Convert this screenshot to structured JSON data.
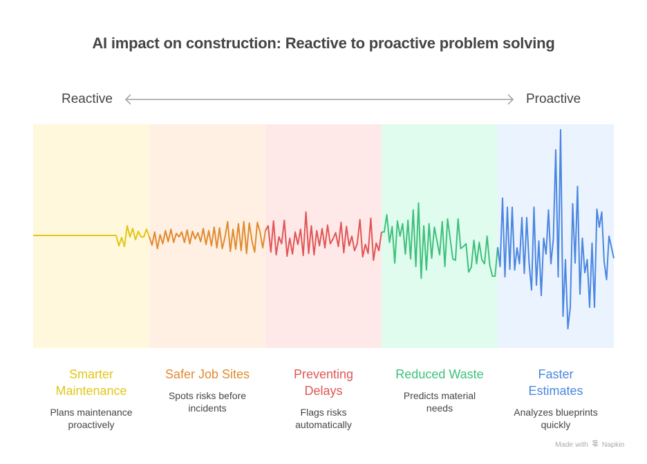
{
  "title": "AI impact on construction: Reactive to proactive problem solving",
  "axis": {
    "left_label": "Reactive",
    "right_label": "Proactive",
    "arrow_color": "#9e9e9e",
    "icon": "double-headed-arrow"
  },
  "segments": [
    {
      "title": "Smarter Maintenance",
      "title_lines": [
        "Smarter",
        "Maintenance"
      ],
      "description": "Plans maintenance proactively",
      "color": "#e2c616",
      "background": "#fff8dc",
      "wave": [
        0,
        0,
        0,
        0,
        0,
        0,
        0,
        0,
        0,
        0,
        0,
        0,
        0,
        0,
        0,
        0,
        0,
        0,
        0,
        0,
        0,
        0,
        0,
        0,
        0,
        0,
        0,
        0,
        0,
        0,
        0,
        -15,
        -3,
        -16,
        14,
        -2,
        10,
        -6,
        6,
        -2,
        -2,
        9,
        -2
      ]
    },
    {
      "title": "Safer Job Sites",
      "title_lines": [
        "Safer Job Sites"
      ],
      "description": "Spots risks before incidents",
      "color": "#e08a2e",
      "background": "#fff0e3",
      "wave": [
        -14,
        5,
        -19,
        1,
        -12,
        7,
        -9,
        9,
        -10,
        3,
        -2,
        5,
        -10,
        8,
        -12,
        6,
        -5,
        4,
        -9,
        10,
        -13,
        7,
        -15,
        12,
        -18,
        11,
        -19,
        -3,
        20,
        -23,
        9,
        -20,
        17,
        -22,
        20,
        -26,
        18,
        -8,
        -24,
        19,
        5,
        -18,
        7
      ]
    },
    {
      "title": "Preventing Delays",
      "title_lines": [
        "Preventing",
        "Delays"
      ],
      "description": "Flags risks automatically",
      "color": "#e05555",
      "background": "#ffe9e8",
      "wave": [
        14,
        -24,
        21,
        -28,
        -2,
        -12,
        22,
        -30,
        -4,
        -27,
        5,
        -13,
        9,
        -29,
        34,
        -26,
        14,
        -28,
        7,
        -15,
        10,
        -18,
        15,
        -12,
        -5,
        4,
        -16,
        19,
        -25,
        13,
        -15,
        -1,
        -22,
        -12,
        23,
        -31,
        -13,
        -26,
        25,
        -36,
        -11,
        -22,
        5
      ]
    },
    {
      "title": "Reduced Waste",
      "title_lines": [
        "Reduced Waste"
      ],
      "description": "Predicts material needs",
      "color": "#3dc07a",
      "background": "#e0fcef",
      "wave": [
        5,
        30,
        -10,
        13,
        -40,
        21,
        -1,
        17,
        -27,
        22,
        -34,
        37,
        -45,
        47,
        -62,
        14,
        -50,
        17,
        -33,
        12,
        -8,
        -28,
        20,
        -45,
        24,
        -5,
        -34,
        -36,
        24,
        -19,
        -16,
        -12,
        -53,
        -46,
        -7,
        -41,
        -10,
        -35,
        -41,
        -1,
        -43,
        -59,
        -59,
        -17
      ]
    },
    {
      "title": "Faster Estimates",
      "title_lines": [
        "Faster",
        "Estimates"
      ],
      "description": "Analyzes blueprints quickly",
      "color": "#4a86e0",
      "background": "#ebf3ff",
      "wave": [
        -45,
        54,
        -60,
        41,
        -49,
        41,
        -50,
        -18,
        -41,
        26,
        -55,
        26,
        -41,
        -79,
        41,
        -72,
        -8,
        -87,
        -4,
        -27,
        37,
        -41,
        -5,
        124,
        -60,
        153,
        -117,
        -35,
        -135,
        -104,
        46,
        -40,
        71,
        -85,
        -4,
        -54,
        -35,
        -104,
        -11,
        -104,
        38,
        12,
        34,
        -38,
        -64,
        -1,
        -17,
        -33
      ]
    }
  ],
  "credit": {
    "prefix": "Made with",
    "brand": "Napkin"
  }
}
